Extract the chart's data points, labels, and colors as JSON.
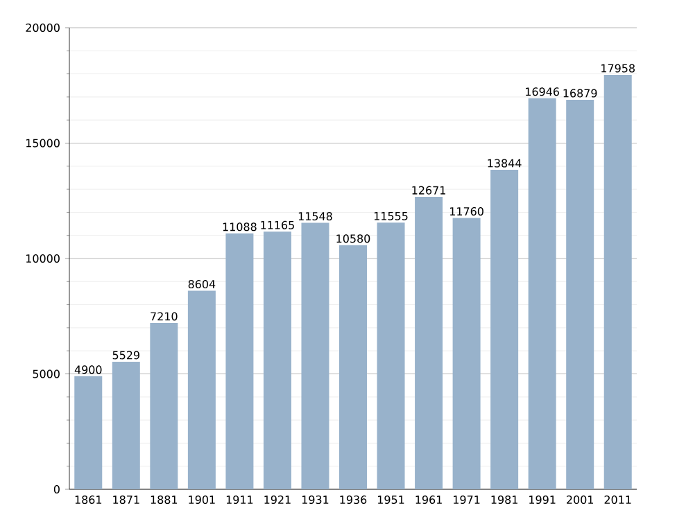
{
  "chart_data": {
    "type": "bar",
    "categories": [
      "1861",
      "1871",
      "1881",
      "1901",
      "1911",
      "1921",
      "1931",
      "1936",
      "1951",
      "1961",
      "1971",
      "1981",
      "1991",
      "2001",
      "2011"
    ],
    "values": [
      4900,
      5529,
      7210,
      8604,
      11088,
      11165,
      11548,
      10580,
      11555,
      12671,
      11760,
      13844,
      16946,
      16879,
      17958
    ],
    "color": "#98b2cb",
    "data_labels": true,
    "grid": "y",
    "ylim": [
      0,
      20000
    ],
    "yticks": [
      0,
      {
        "value": 1000,
        "label": null
      },
      {
        "value": 2000,
        "label": null
      },
      {
        "value": 3000,
        "label": null
      },
      {
        "value": 4000,
        "label": null
      },
      5000,
      {
        "value": 6000,
        "label": null
      },
      {
        "value": 7000,
        "label": null
      },
      {
        "value": 8000,
        "label": null
      },
      {
        "value": 9000,
        "label": null
      },
      10000,
      {
        "value": 11000,
        "label": null
      },
      {
        "value": 12000,
        "label": null
      },
      {
        "value": 13000,
        "label": null
      },
      {
        "value": 14000,
        "label": null
      },
      15000,
      {
        "value": 16000,
        "label": null
      },
      {
        "value": 17000,
        "label": null
      },
      {
        "value": 18000,
        "label": null
      },
      {
        "value": 19000,
        "label": null
      },
      20000
    ]
  }
}
